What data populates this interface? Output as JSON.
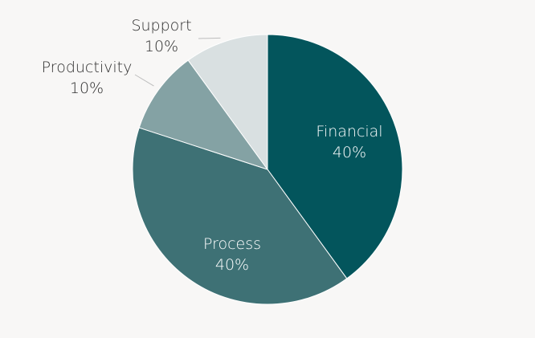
{
  "chart_data": {
    "type": "pie",
    "title": "",
    "slices": [
      {
        "label": "Financial",
        "value": 40,
        "display": "40%",
        "color": "#03555c"
      },
      {
        "label": "Process",
        "value": 40,
        "display": "40%",
        "color": "#3e7175"
      },
      {
        "label": "Productivity",
        "value": 10,
        "display": "10%",
        "color": "#84a2a4"
      },
      {
        "label": "Support",
        "value": 10,
        "display": "10%",
        "color": "#d9e0e1"
      }
    ],
    "start_angle": "top (12 o'clock)",
    "direction": "clockwise",
    "legend": "none",
    "label_placement": {
      "Financial": "inside",
      "Process": "inside",
      "Productivity": "outside-with-leader",
      "Support": "outside-with-leader"
    }
  },
  "background_color": "#f8f7f6"
}
